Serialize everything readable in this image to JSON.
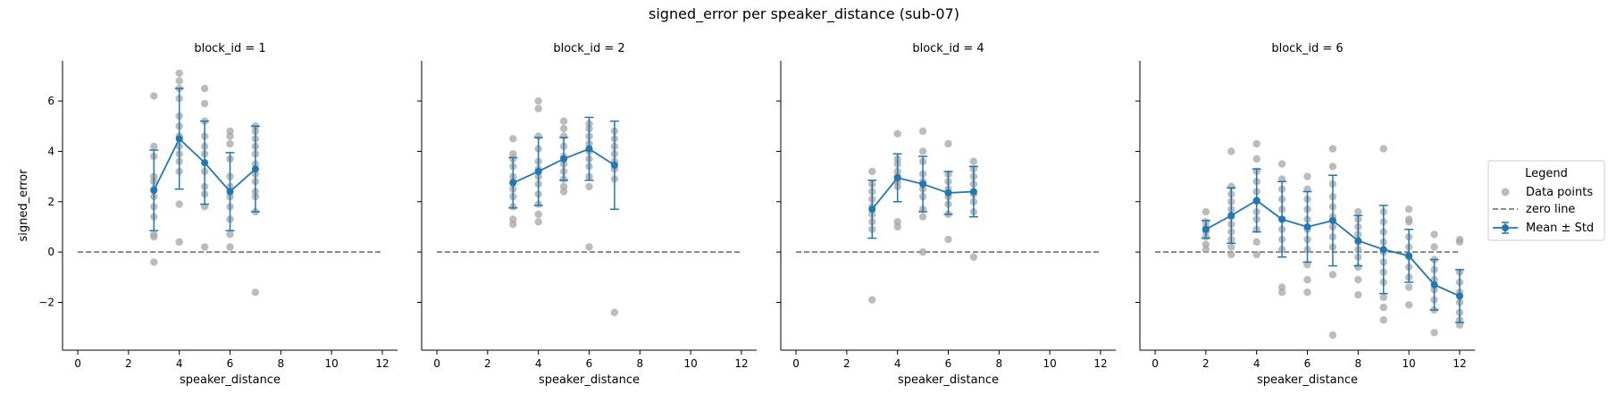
{
  "figure_title": "signed_error per speaker_distance (sub-07)",
  "legend": {
    "title": "Legend",
    "items": [
      "Data points",
      "zero line",
      "Mean ± Std"
    ]
  },
  "colors": {
    "points": "#a6a6a6",
    "mean": "#1f77b4",
    "zero": "#666666"
  },
  "chart_data": [
    {
      "type": "scatter",
      "title": "block_id = 1",
      "xlabel": "speaker_distance",
      "ylabel": "signed_error",
      "xlim": [
        -0.6,
        12.6
      ],
      "ylim": [
        -3.9,
        7.6
      ],
      "xticks": [
        0,
        2,
        4,
        6,
        8,
        10,
        12
      ],
      "yticks": [
        -2,
        0,
        2,
        4,
        6
      ],
      "zero_line": [
        0,
        12
      ],
      "points": [
        {
          "x": 3,
          "y": [
            6.2,
            4.2,
            3.8,
            3.0,
            2.8,
            2.5,
            2.2,
            1.8,
            1.4,
            0.7,
            0.6,
            -0.4
          ]
        },
        {
          "x": 4,
          "y": [
            7.1,
            6.8,
            6.5,
            6.1,
            5.4,
            5.0,
            4.6,
            4.2,
            3.9,
            3.6,
            3.2,
            1.9,
            0.4
          ]
        },
        {
          "x": 5,
          "y": [
            6.5,
            5.9,
            5.2,
            4.6,
            4.2,
            3.9,
            3.2,
            2.6,
            2.3,
            1.8,
            0.2
          ]
        },
        {
          "x": 6,
          "y": [
            4.8,
            4.6,
            4.3,
            3.7,
            3.0,
            2.6,
            2.2,
            1.8,
            1.3,
            0.7,
            0.2
          ]
        },
        {
          "x": 7,
          "y": [
            5.0,
            4.8,
            4.5,
            4.2,
            3.9,
            3.5,
            3.1,
            2.8,
            2.4,
            2.2,
            1.6,
            -1.6
          ]
        }
      ],
      "mean": [
        {
          "x": 3,
          "y": 2.45,
          "std": 1.6
        },
        {
          "x": 4,
          "y": 4.5,
          "std": 2.0
        },
        {
          "x": 5,
          "y": 3.55,
          "std": 1.65
        },
        {
          "x": 6,
          "y": 2.4,
          "std": 1.55
        },
        {
          "x": 7,
          "y": 3.3,
          "std": 1.7
        }
      ]
    },
    {
      "type": "scatter",
      "title": "block_id = 2",
      "xlabel": "speaker_distance",
      "ylabel": "",
      "xlim": [
        -0.6,
        12.6
      ],
      "ylim": [
        -3.9,
        7.6
      ],
      "xticks": [
        0,
        2,
        4,
        6,
        8,
        10,
        12
      ],
      "yticks": [
        -2,
        0,
        2,
        4,
        6
      ],
      "zero_line": [
        0,
        12
      ],
      "points": [
        {
          "x": 3,
          "y": [
            4.5,
            3.9,
            3.7,
            3.4,
            3.0,
            2.8,
            2.5,
            2.2,
            1.8,
            1.3,
            1.1
          ]
        },
        {
          "x": 4,
          "y": [
            6.0,
            5.7,
            4.6,
            4.1,
            3.6,
            3.3,
            3.0,
            2.7,
            2.3,
            1.9,
            1.5,
            1.2
          ]
        },
        {
          "x": 5,
          "y": [
            5.2,
            4.9,
            4.6,
            4.2,
            3.8,
            3.5,
            3.2,
            2.9,
            2.6,
            2.4
          ]
        },
        {
          "x": 6,
          "y": [
            5.1,
            4.9,
            4.6,
            4.3,
            4.0,
            3.7,
            3.4,
            3.0,
            2.6,
            0.2
          ]
        },
        {
          "x": 7,
          "y": [
            4.8,
            4.5,
            4.2,
            3.9,
            3.6,
            3.3,
            2.9,
            -2.4
          ]
        }
      ],
      "mean": [
        {
          "x": 3,
          "y": 2.75,
          "std": 1.0
        },
        {
          "x": 4,
          "y": 3.2,
          "std": 1.35
        },
        {
          "x": 5,
          "y": 3.7,
          "std": 0.85
        },
        {
          "x": 6,
          "y": 4.1,
          "std": 1.25
        },
        {
          "x": 7,
          "y": 3.45,
          "std": 1.75
        }
      ]
    },
    {
      "type": "scatter",
      "title": "block_id = 4",
      "xlabel": "speaker_distance",
      "ylabel": "",
      "xlim": [
        -0.6,
        12.6
      ],
      "ylim": [
        -3.9,
        7.6
      ],
      "xticks": [
        0,
        2,
        4,
        6,
        8,
        10,
        12
      ],
      "yticks": [
        -2,
        0,
        2,
        4,
        6
      ],
      "zero_line": [
        0,
        12
      ],
      "points": [
        {
          "x": 3,
          "y": [
            3.2,
            2.7,
            2.4,
            2.1,
            1.8,
            1.5,
            1.2,
            0.9,
            -1.9
          ]
        },
        {
          "x": 4,
          "y": [
            4.7,
            3.7,
            3.5,
            3.2,
            3.0,
            2.8,
            2.6,
            1.2,
            1.0
          ]
        },
        {
          "x": 5,
          "y": [
            4.8,
            4.0,
            3.6,
            3.1,
            2.8,
            2.5,
            2.2,
            1.7,
            1.4,
            0.0
          ]
        },
        {
          "x": 6,
          "y": [
            4.3,
            3.1,
            2.8,
            2.5,
            2.2,
            1.9,
            1.5,
            0.5
          ]
        },
        {
          "x": 7,
          "y": [
            3.6,
            3.3,
            3.0,
            2.7,
            2.3,
            2.0,
            1.6,
            -0.2
          ]
        }
      ],
      "mean": [
        {
          "x": 3,
          "y": 1.7,
          "std": 1.15
        },
        {
          "x": 4,
          "y": 2.95,
          "std": 0.95
        },
        {
          "x": 5,
          "y": 2.7,
          "std": 1.1
        },
        {
          "x": 6,
          "y": 2.35,
          "std": 0.85
        },
        {
          "x": 7,
          "y": 2.4,
          "std": 1.0
        }
      ]
    },
    {
      "type": "scatter",
      "title": "block_id = 6",
      "xlabel": "speaker_distance",
      "ylabel": "",
      "xlim": [
        -0.6,
        12.6
      ],
      "ylim": [
        -3.9,
        7.6
      ],
      "xticks": [
        0,
        2,
        4,
        6,
        8,
        10,
        12
      ],
      "yticks": [
        -2,
        0,
        2,
        4,
        6
      ],
      "zero_line": [
        0,
        12
      ],
      "points": [
        {
          "x": 2,
          "y": [
            1.6,
            1.2,
            1.0,
            0.8,
            0.6,
            0.3,
            0.1
          ]
        },
        {
          "x": 3,
          "y": [
            4.0,
            2.6,
            2.3,
            2.0,
            1.7,
            1.4,
            1.1,
            0.8,
            0.5,
            0.2,
            -0.1
          ]
        },
        {
          "x": 4,
          "y": [
            4.3,
            3.7,
            3.2,
            2.8,
            2.4,
            2.0,
            1.6,
            1.3,
            0.9,
            0.4,
            -0.1
          ]
        },
        {
          "x": 5,
          "y": [
            3.5,
            2.9,
            2.5,
            2.1,
            1.7,
            1.3,
            0.9,
            0.5,
            0.1,
            -1.4,
            -1.6
          ]
        },
        {
          "x": 6,
          "y": [
            3.0,
            2.5,
            2.1,
            1.7,
            1.3,
            0.9,
            0.5,
            0.1,
            -0.5,
            -1.1,
            -1.6
          ]
        },
        {
          "x": 7,
          "y": [
            4.1,
            3.4,
            2.7,
            2.2,
            1.8,
            1.4,
            1.0,
            0.6,
            0.2,
            -0.9,
            -3.3
          ]
        },
        {
          "x": 8,
          "y": [
            1.6,
            1.3,
            1.0,
            0.7,
            0.4,
            0.1,
            -0.2,
            -0.6,
            -1.1,
            -1.7
          ]
        },
        {
          "x": 9,
          "y": [
            4.1,
            1.6,
            1.2,
            0.8,
            0.4,
            0.0,
            -0.4,
            -0.8,
            -1.2,
            -1.8,
            -2.2,
            -2.7
          ]
        },
        {
          "x": 10,
          "y": [
            1.7,
            1.3,
            1.2,
            0.6,
            0.2,
            -0.2,
            -0.6,
            -1.0,
            -1.4,
            -2.1
          ]
        },
        {
          "x": 11,
          "y": [
            0.7,
            0.2,
            -0.3,
            -0.7,
            -1.1,
            -1.5,
            -1.9,
            -2.3,
            -3.2
          ]
        },
        {
          "x": 12,
          "y": [
            0.5,
            0.4,
            -0.8,
            -1.2,
            -1.6,
            -2.0,
            -2.4,
            -2.7,
            -2.9
          ]
        }
      ],
      "mean": [
        {
          "x": 2,
          "y": 0.9,
          "std": 0.35
        },
        {
          "x": 3,
          "y": 1.45,
          "std": 1.1
        },
        {
          "x": 4,
          "y": 2.05,
          "std": 1.25
        },
        {
          "x": 5,
          "y": 1.3,
          "std": 1.5
        },
        {
          "x": 6,
          "y": 1.0,
          "std": 1.4
        },
        {
          "x": 7,
          "y": 1.25,
          "std": 1.8
        },
        {
          "x": 8,
          "y": 0.45,
          "std": 1.0
        },
        {
          "x": 9,
          "y": 0.1,
          "std": 1.75
        },
        {
          "x": 10,
          "y": -0.15,
          "std": 1.05
        },
        {
          "x": 11,
          "y": -1.3,
          "std": 1.0
        },
        {
          "x": 12,
          "y": -1.75,
          "std": 1.05
        }
      ]
    }
  ]
}
